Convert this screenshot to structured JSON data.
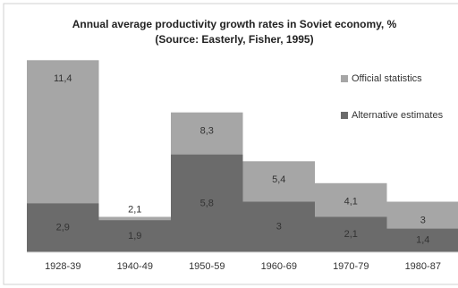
{
  "chart_data": {
    "type": "bar",
    "barmode": "overlay",
    "title": "Annual average productivity growth rates in Soviet economy, %",
    "subtitle": "(Source: Easterly, Fisher, 1995)",
    "categories": [
      "1928-39",
      "1940-49",
      "1950-59",
      "1960-69",
      "1970-79",
      "1980-87"
    ],
    "series": [
      {
        "name": "Official statistics",
        "color": "#a6a6a6",
        "values": [
          11.4,
          2.1,
          8.3,
          5.4,
          4.1,
          3
        ],
        "value_labels": [
          "11,4",
          "2,1",
          "8,3",
          "5,4",
          "4,1",
          "3"
        ]
      },
      {
        "name": "Alternative estimates",
        "color": "#6b6b6b",
        "values": [
          2.9,
          1.9,
          5.8,
          3,
          2.1,
          1.4
        ],
        "value_labels": [
          "2,9",
          "1,9",
          "5,8",
          "3",
          "2,1",
          "1,4"
        ]
      }
    ],
    "ylim": [
      0,
      12
    ]
  }
}
